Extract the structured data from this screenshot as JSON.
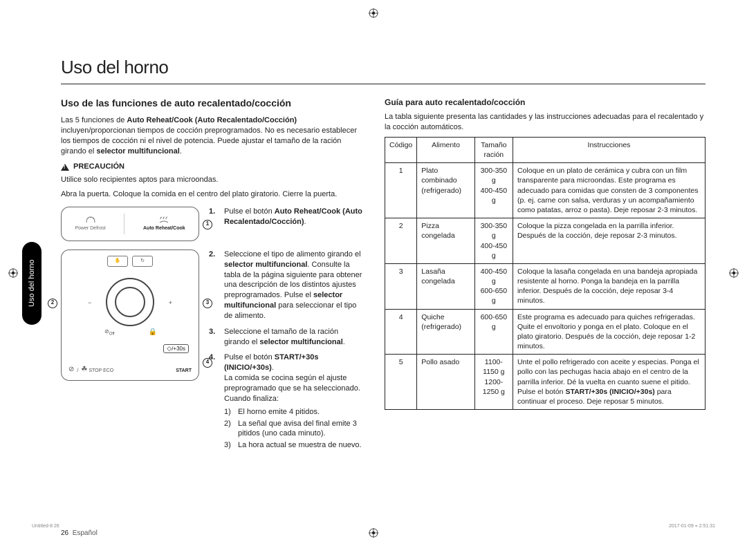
{
  "title": "Uso del horno",
  "sideTab": "Uso del horno",
  "left": {
    "heading": "Uso de las funciones de auto recalentado/cocción",
    "intro": "Las 5 funciones de <b>Auto Reheat/Cook (Auto Recalentado/Cocción)</b> incluyen/proporcionan tiempos de cocción preprogramados. No es necesario establecer los tiempos de cocción ni el nivel de potencia. Puede ajustar el tamaño de la ración girando el <b>selector multifuncional</b>.",
    "cautionLabel": "PRECAUCIÓN",
    "cautionText": "Utilice solo recipientes aptos para microondas.",
    "openDoor": "Abra la puerta. Coloque la comida en el centro del plato giratorio. Cierre la puerta.",
    "panel1": {
      "btnA": "Power Defrost",
      "btnB": "Auto Reheat/Cook"
    },
    "panel2": {
      "stopEco": "STOP  ECO",
      "start": "START",
      "plus30": "/+30s"
    },
    "steps": [
      {
        "n": "1.",
        "html": "Pulse el botón <b>Auto Reheat/Cook (Auto Recalentado/Cocción)</b>."
      },
      {
        "n": "2.",
        "html": "Seleccione el tipo de alimento girando el <b>selector multifuncional</b>. Consulte la tabla de la página siguiente para obtener una descripción de los distintos ajustes preprogramados. Pulse el <b>selector multifuncional</b> para seleccionar el tipo de alimento."
      },
      {
        "n": "3.",
        "html": "Seleccione el tamaño de la ración girando el <b>selector multifuncional</b>."
      },
      {
        "n": "4.",
        "html": "Pulse el botón <b>START/+30s (INICIO/+30s)</b>.<br>La comida se cocina según el ajuste preprogramado que se ha seleccionado. Cuando finaliza:",
        "sub": [
          {
            "sn": "1)",
            "t": "El horno emite 4 pitidos."
          },
          {
            "sn": "2)",
            "t": "La señal que avisa del final emite 3 pitidos (uno cada minuto)."
          },
          {
            "sn": "3)",
            "t": "La hora actual se muestra de nuevo."
          }
        ]
      }
    ]
  },
  "right": {
    "heading": "Guía para auto recalentado/cocción",
    "intro": "La tabla siguiente presenta las cantidades y las instrucciones adecuadas para el recalentado y la cocción automáticos.",
    "headers": {
      "code": "Código",
      "food": "Alimento",
      "size": "Tamaño ración",
      "instr": "Instrucciones"
    },
    "rows": [
      {
        "code": "1",
        "food": "Plato combinado (refrigerado)",
        "size": "300-350 g<br>400-450 g",
        "instr": "Coloque en un plato de cerámica y cubra con un film transparente para microondas. Este programa es adecuado para comidas que consten de 3 componentes (p. ej. carne con salsa, verduras y un acompañamiento como patatas, arroz o pasta). Deje reposar 2-3 minutos."
      },
      {
        "code": "2",
        "food": "Pizza congelada",
        "size": "300-350 g<br>400-450 g",
        "instr": "Coloque la pizza congelada en la parrilla inferior. Después de la cocción, deje reposar 2-3 minutos."
      },
      {
        "code": "3",
        "food": "Lasaña congelada",
        "size": "400-450 g<br>600-650 g",
        "instr": "Coloque la lasaña congelada en una bandeja apropiada resistente al horno. Ponga la bandeja en la parrilla inferior. Después de la cocción, deje reposar 3-4 minutos."
      },
      {
        "code": "4",
        "food": "Quiche (refrigerado)",
        "size": "600-650 g",
        "instr": "Este programa es adecuado para quiches refrigeradas. Quite el envoltorio y ponga en el plato. Coloque en el plato giratorio. Después de la cocción, deje reposar 1-2 minutos."
      },
      {
        "code": "5",
        "food": "Pollo asado",
        "size": "1100-1150 g<br>1200-1250 g",
        "instr": "Unte el pollo refrigerado con aceite y especias. Ponga el pollo con las pechugas hacia abajo en el centro de la parrilla inferior. Dé la vuelta en cuanto suene el pitido. Pulse el botón <b>START/+30s (INICIO/+30s)</b> para continuar el proceso. Deje reposar 5 minutos."
      }
    ]
  },
  "pageNum": "26",
  "pageLang": "Español",
  "metaLeft": "Untitled-8   26",
  "metaRight": "2017-01-09   ⌖ 2:51:31"
}
